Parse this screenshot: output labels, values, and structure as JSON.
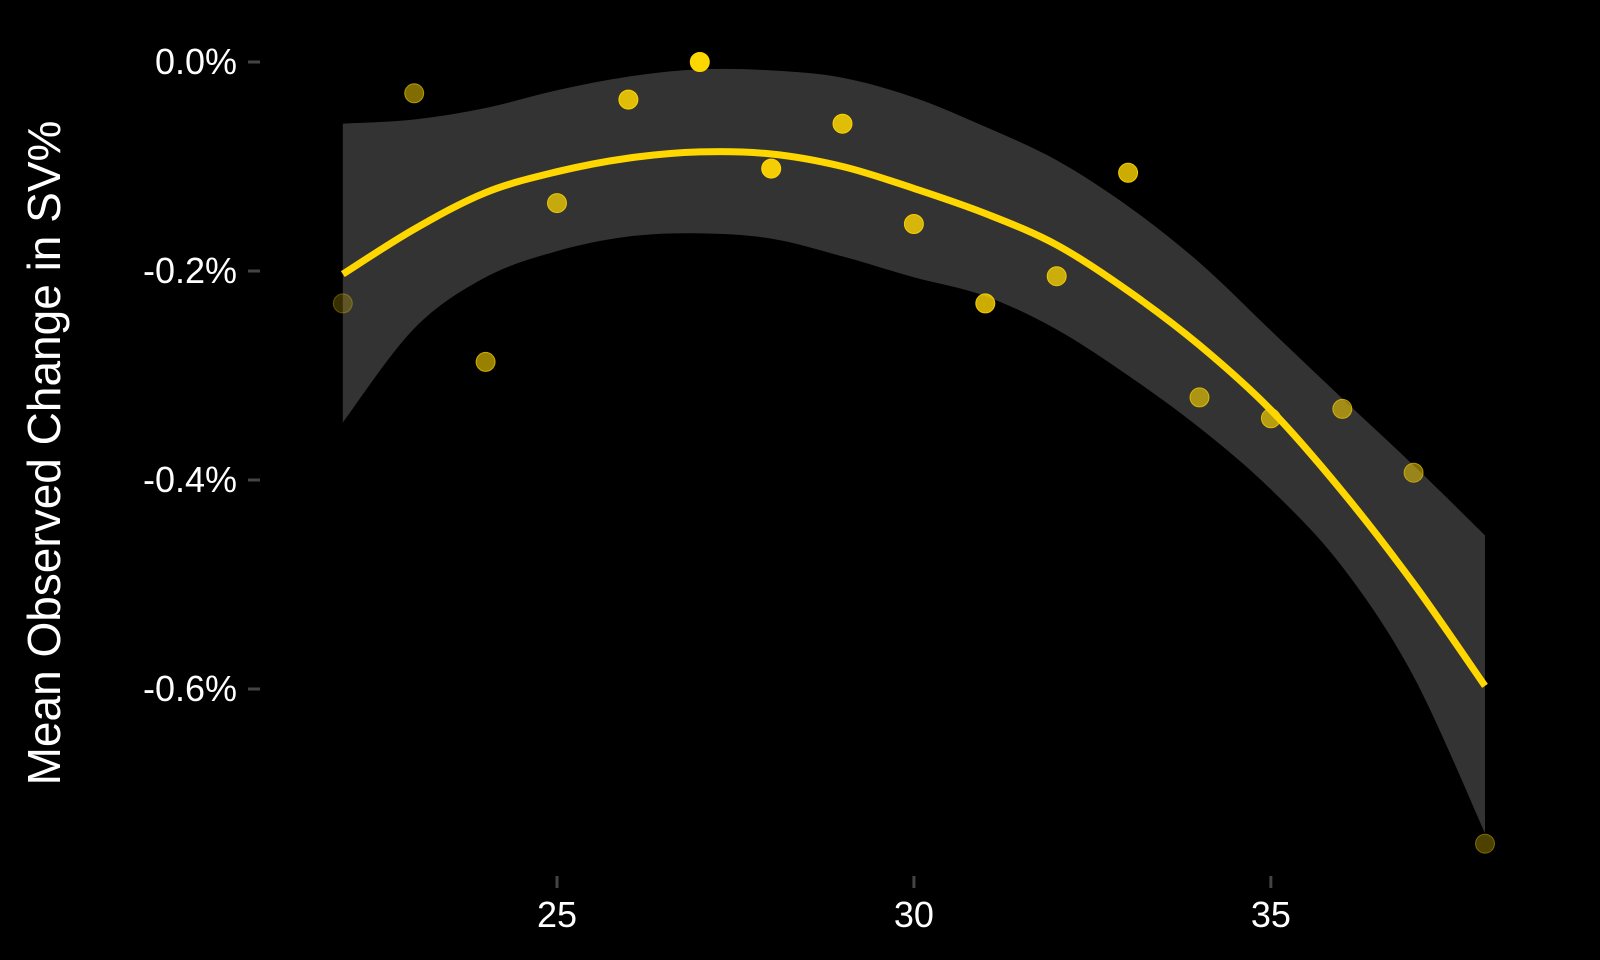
{
  "chart_data": {
    "type": "scatter",
    "title": "",
    "xlabel": "",
    "ylabel": "Mean Observed Change in SV%",
    "xlim": [
      21.4,
      38.7
    ],
    "ylim": [
      -0.758,
      0.0
    ],
    "x_ticks": [
      25,
      30,
      35
    ],
    "x_tick_labels": [
      "25",
      "30",
      "35"
    ],
    "y_ticks": [
      0.0,
      -0.2,
      -0.4,
      -0.6
    ],
    "y_tick_labels": [
      "0.0%",
      "-0.2%",
      "-0.4%",
      "-0.6%"
    ],
    "grid": false,
    "legend": "none",
    "colors": {
      "background": "#000000",
      "point": "#ffd700",
      "trend_line": "#ffd700",
      "confidence_band": "#333333",
      "text": "#ffffff",
      "tick_mark": "#444444"
    },
    "points": [
      {
        "x": 22,
        "y": -0.231,
        "opacity": 0.22
      },
      {
        "x": 23,
        "y": -0.03,
        "opacity": 0.5
      },
      {
        "x": 24,
        "y": -0.287,
        "opacity": 0.6
      },
      {
        "x": 25,
        "y": -0.135,
        "opacity": 0.72
      },
      {
        "x": 26,
        "y": -0.036,
        "opacity": 0.85
      },
      {
        "x": 27,
        "y": 0.0,
        "opacity": 1.0
      },
      {
        "x": 28,
        "y": -0.102,
        "opacity": 0.95
      },
      {
        "x": 29,
        "y": -0.059,
        "opacity": 0.85
      },
      {
        "x": 30,
        "y": -0.155,
        "opacity": 0.8
      },
      {
        "x": 31,
        "y": -0.231,
        "opacity": 0.8
      },
      {
        "x": 32,
        "y": -0.205,
        "opacity": 0.75
      },
      {
        "x": 33,
        "y": -0.106,
        "opacity": 0.8
      },
      {
        "x": 34,
        "y": -0.321,
        "opacity": 0.6
      },
      {
        "x": 35,
        "y": -0.341,
        "opacity": 0.65
      },
      {
        "x": 36,
        "y": -0.332,
        "opacity": 0.55
      },
      {
        "x": 37,
        "y": -0.393,
        "opacity": 0.5
      },
      {
        "x": 38,
        "y": -0.748,
        "opacity": 0.3
      }
    ],
    "trend": [
      {
        "x": 22,
        "y": -0.203
      },
      {
        "x": 23,
        "y": -0.16
      },
      {
        "x": 24,
        "y": -0.125
      },
      {
        "x": 25,
        "y": -0.105
      },
      {
        "x": 26,
        "y": -0.092
      },
      {
        "x": 27,
        "y": -0.086
      },
      {
        "x": 28,
        "y": -0.088
      },
      {
        "x": 29,
        "y": -0.1
      },
      {
        "x": 30,
        "y": -0.121
      },
      {
        "x": 31,
        "y": -0.145
      },
      {
        "x": 32,
        "y": -0.175
      },
      {
        "x": 33,
        "y": -0.219
      },
      {
        "x": 34,
        "y": -0.271
      },
      {
        "x": 35,
        "y": -0.333
      },
      {
        "x": 36,
        "y": -0.411
      },
      {
        "x": 37,
        "y": -0.499
      },
      {
        "x": 38,
        "y": -0.597
      }
    ],
    "band_upper": [
      {
        "x": 22,
        "y": -0.059
      },
      {
        "x": 23,
        "y": -0.055
      },
      {
        "x": 24,
        "y": -0.044
      },
      {
        "x": 25,
        "y": -0.027
      },
      {
        "x": 26,
        "y": -0.014
      },
      {
        "x": 27,
        "y": -0.007
      },
      {
        "x": 28,
        "y": -0.008
      },
      {
        "x": 29,
        "y": -0.015
      },
      {
        "x": 30,
        "y": -0.034
      },
      {
        "x": 31,
        "y": -0.062
      },
      {
        "x": 32,
        "y": -0.094
      },
      {
        "x": 33,
        "y": -0.138
      },
      {
        "x": 34,
        "y": -0.192
      },
      {
        "x": 35,
        "y": -0.257
      },
      {
        "x": 36,
        "y": -0.322
      },
      {
        "x": 37,
        "y": -0.386
      },
      {
        "x": 38,
        "y": -0.453
      }
    ],
    "band_lower": [
      {
        "x": 22,
        "y": -0.345
      },
      {
        "x": 23,
        "y": -0.255
      },
      {
        "x": 24,
        "y": -0.206
      },
      {
        "x": 25,
        "y": -0.181
      },
      {
        "x": 26,
        "y": -0.167
      },
      {
        "x": 27,
        "y": -0.164
      },
      {
        "x": 28,
        "y": -0.169
      },
      {
        "x": 29,
        "y": -0.186
      },
      {
        "x": 30,
        "y": -0.206
      },
      {
        "x": 31,
        "y": -0.224
      },
      {
        "x": 32,
        "y": -0.256
      },
      {
        "x": 33,
        "y": -0.3
      },
      {
        "x": 34,
        "y": -0.35
      },
      {
        "x": 35,
        "y": -0.409
      },
      {
        "x": 36,
        "y": -0.483
      },
      {
        "x": 37,
        "y": -0.588
      },
      {
        "x": 38,
        "y": -0.738
      }
    ]
  }
}
